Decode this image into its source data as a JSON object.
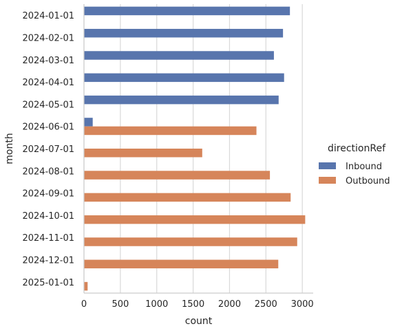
{
  "chart_data": {
    "type": "bar",
    "orientation": "horizontal",
    "categories": [
      "2024-01-01",
      "2024-02-01",
      "2024-03-01",
      "2024-04-01",
      "2024-05-01",
      "2024-06-01",
      "2024-07-01",
      "2024-08-01",
      "2024-09-01",
      "2024-10-01",
      "2024-11-01",
      "2024-12-01",
      "2025-01-01"
    ],
    "series": [
      {
        "name": "Inbound",
        "color": "#5875ad",
        "values": [
          2830,
          2735,
          2610,
          2750,
          2675,
          120,
          null,
          null,
          null,
          null,
          null,
          null,
          null
        ]
      },
      {
        "name": "Outbound",
        "color": "#d6855a",
        "values": [
          null,
          null,
          null,
          null,
          null,
          2370,
          1625,
          2555,
          2840,
          3040,
          2930,
          2670,
          50
        ]
      }
    ],
    "xlabel": "count",
    "ylabel": "month",
    "xlim": [
      0,
      3150
    ],
    "xticks": [
      0,
      500,
      1000,
      1500,
      2000,
      2500,
      3000
    ],
    "xtick_labels": [
      "0",
      "500",
      "1000",
      "1500",
      "2000",
      "2500",
      "3000"
    ],
    "grid": "vertical",
    "legend": {
      "title": "directionRef",
      "placement": "right"
    }
  }
}
